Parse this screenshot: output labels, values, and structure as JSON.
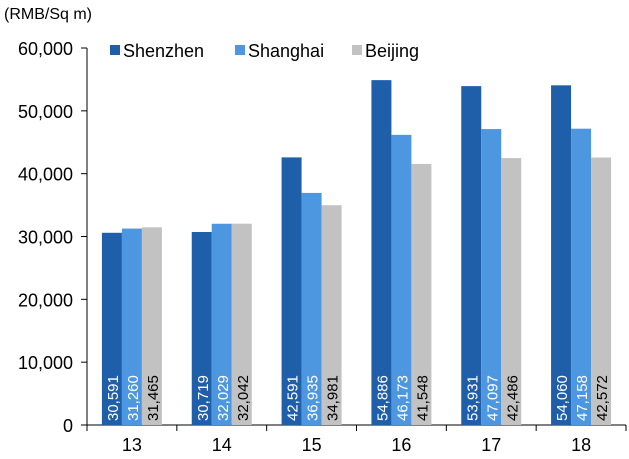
{
  "chart_data": {
    "type": "bar",
    "unit_label": "(RMB/Sq m)",
    "categories": [
      "13",
      "14",
      "15",
      "16",
      "17",
      "18"
    ],
    "series": [
      {
        "name": "Shenzhen",
        "color": "#1f5ea8",
        "values": [
          30591,
          30719,
          42591,
          54886,
          53931,
          54060
        ]
      },
      {
        "name": "Shanghai",
        "color": "#4d97e0",
        "values": [
          31260,
          32029,
          36935,
          46173,
          47097,
          47158
        ]
      },
      {
        "name": "Beijing",
        "color": "#c2c2c2",
        "values": [
          31465,
          32042,
          34981,
          41548,
          42486,
          42572
        ]
      }
    ],
    "data_labels": [
      [
        "30,591",
        "30,719",
        "42,591",
        "54,886",
        "53,931",
        "54,060"
      ],
      [
        "31,260",
        "32,029",
        "36,935",
        "46,173",
        "47,097",
        "47,158"
      ],
      [
        "31,465",
        "32,042",
        "34,981",
        "41,548",
        "42,486",
        "42,572"
      ]
    ],
    "y_ticks": [
      0,
      10000,
      20000,
      30000,
      40000,
      50000,
      60000
    ],
    "y_tick_labels": [
      "0",
      "10,000",
      "20,000",
      "30,000",
      "40,000",
      "50,000",
      "60,000"
    ],
    "ylim": [
      0,
      60000
    ],
    "grid": false,
    "legend_position": "top"
  }
}
